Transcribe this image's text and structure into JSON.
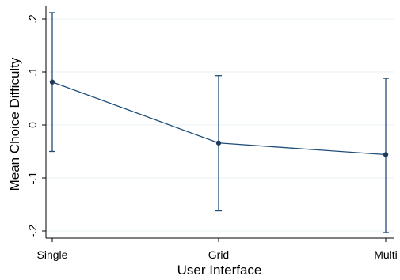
{
  "chart_data": {
    "type": "line",
    "title": "",
    "xlabel": "User Interface",
    "ylabel": "Mean Choice Difficulty",
    "categories": [
      "Single",
      "Grid",
      "Multi"
    ],
    "series": [
      {
        "values": [
          0.081,
          -0.034,
          -0.056
        ],
        "ci_low": [
          -0.05,
          -0.162,
          -0.203
        ],
        "ci_high": [
          0.212,
          0.093,
          0.088
        ]
      }
    ],
    "yticks": [
      {
        "value": 0.2,
        "label": ".2"
      },
      {
        "value": 0.1,
        "label": ".1"
      },
      {
        "value": 0,
        "label": "0"
      },
      {
        "value": -0.1,
        "label": "-.1"
      },
      {
        "value": -0.2,
        "label": "-.2"
      }
    ],
    "ylim": [
      -0.2,
      0.2
    ],
    "grid": true,
    "colors": {
      "line": "#1f4e79",
      "marker": "#1f3b5c",
      "grid": "#eaf0f3",
      "axis": "#000000"
    }
  }
}
